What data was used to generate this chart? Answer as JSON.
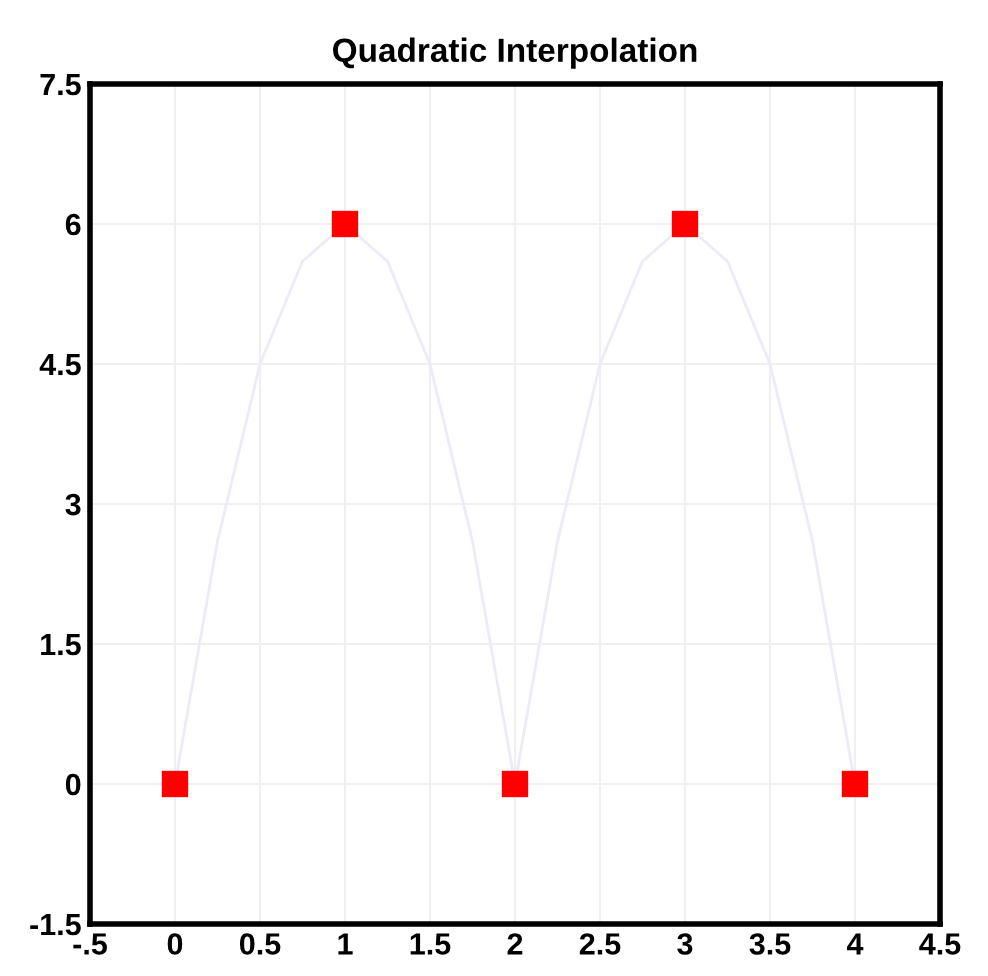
{
  "chart_data": {
    "type": "scatter",
    "title": "Quadratic Interpolation",
    "series": [
      {
        "type": "line",
        "color": "#ececf8",
        "marker": "none",
        "x": [
          0,
          0.25,
          0.5,
          0.75,
          1,
          1.25,
          1.5,
          1.75,
          2,
          2.25,
          2.5,
          2.75,
          3,
          3.25,
          3.5,
          3.75,
          4
        ],
        "values": [
          0,
          2.6,
          4.5,
          5.6,
          6,
          5.6,
          4.5,
          2.6,
          0,
          2.6,
          4.5,
          5.6,
          6,
          5.6,
          4.5,
          2.6,
          0
        ]
      },
      {
        "color": "#ff0000",
        "marker": "square",
        "x": [
          0,
          1,
          2,
          3,
          4
        ],
        "values": [
          0,
          6,
          0,
          6,
          0
        ]
      }
    ],
    "xlim": [
      -0.5,
      4.5
    ],
    "ylim": [
      -1.5,
      7.5
    ],
    "xticks": [
      {
        "value": -0.5,
        "label": "-.5"
      },
      0,
      0.5,
      1,
      1.5,
      2,
      2.5,
      3,
      3.5,
      4,
      4.5
    ],
    "yticks": [
      -1.5,
      0,
      1.5,
      3,
      4.5,
      6,
      7.5
    ],
    "grid": true
  }
}
